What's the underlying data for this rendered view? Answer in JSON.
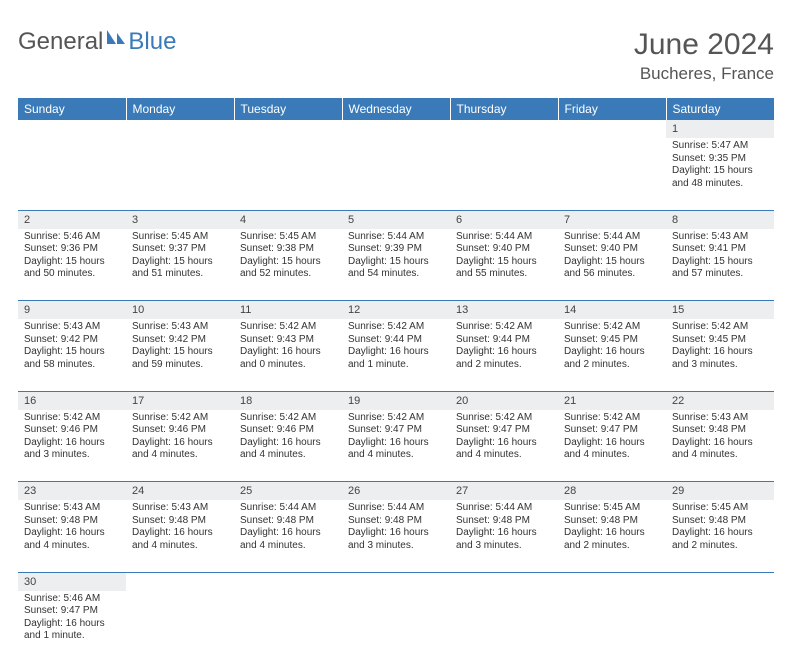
{
  "logo": {
    "text1": "General",
    "text2": "Blue"
  },
  "header": {
    "month": "June 2024",
    "location": "Bucheres, France"
  },
  "colors": {
    "brand": "#3a7ab8",
    "grayband": "#eceeef",
    "text": "#333333",
    "heading": "#555555"
  },
  "weekdays": [
    "Sunday",
    "Monday",
    "Tuesday",
    "Wednesday",
    "Thursday",
    "Friday",
    "Saturday"
  ],
  "weeks": [
    [
      null,
      null,
      null,
      null,
      null,
      null,
      {
        "d": "1",
        "sr": "Sunrise: 5:47 AM",
        "ss": "Sunset: 9:35 PM",
        "dl": "Daylight: 15 hours and 48 minutes."
      }
    ],
    [
      {
        "d": "2",
        "sr": "Sunrise: 5:46 AM",
        "ss": "Sunset: 9:36 PM",
        "dl": "Daylight: 15 hours and 50 minutes."
      },
      {
        "d": "3",
        "sr": "Sunrise: 5:45 AM",
        "ss": "Sunset: 9:37 PM",
        "dl": "Daylight: 15 hours and 51 minutes."
      },
      {
        "d": "4",
        "sr": "Sunrise: 5:45 AM",
        "ss": "Sunset: 9:38 PM",
        "dl": "Daylight: 15 hours and 52 minutes."
      },
      {
        "d": "5",
        "sr": "Sunrise: 5:44 AM",
        "ss": "Sunset: 9:39 PM",
        "dl": "Daylight: 15 hours and 54 minutes."
      },
      {
        "d": "6",
        "sr": "Sunrise: 5:44 AM",
        "ss": "Sunset: 9:40 PM",
        "dl": "Daylight: 15 hours and 55 minutes."
      },
      {
        "d": "7",
        "sr": "Sunrise: 5:44 AM",
        "ss": "Sunset: 9:40 PM",
        "dl": "Daylight: 15 hours and 56 minutes."
      },
      {
        "d": "8",
        "sr": "Sunrise: 5:43 AM",
        "ss": "Sunset: 9:41 PM",
        "dl": "Daylight: 15 hours and 57 minutes."
      }
    ],
    [
      {
        "d": "9",
        "sr": "Sunrise: 5:43 AM",
        "ss": "Sunset: 9:42 PM",
        "dl": "Daylight: 15 hours and 58 minutes."
      },
      {
        "d": "10",
        "sr": "Sunrise: 5:43 AM",
        "ss": "Sunset: 9:42 PM",
        "dl": "Daylight: 15 hours and 59 minutes."
      },
      {
        "d": "11",
        "sr": "Sunrise: 5:42 AM",
        "ss": "Sunset: 9:43 PM",
        "dl": "Daylight: 16 hours and 0 minutes."
      },
      {
        "d": "12",
        "sr": "Sunrise: 5:42 AM",
        "ss": "Sunset: 9:44 PM",
        "dl": "Daylight: 16 hours and 1 minute."
      },
      {
        "d": "13",
        "sr": "Sunrise: 5:42 AM",
        "ss": "Sunset: 9:44 PM",
        "dl": "Daylight: 16 hours and 2 minutes."
      },
      {
        "d": "14",
        "sr": "Sunrise: 5:42 AM",
        "ss": "Sunset: 9:45 PM",
        "dl": "Daylight: 16 hours and 2 minutes."
      },
      {
        "d": "15",
        "sr": "Sunrise: 5:42 AM",
        "ss": "Sunset: 9:45 PM",
        "dl": "Daylight: 16 hours and 3 minutes."
      }
    ],
    [
      {
        "d": "16",
        "sr": "Sunrise: 5:42 AM",
        "ss": "Sunset: 9:46 PM",
        "dl": "Daylight: 16 hours and 3 minutes."
      },
      {
        "d": "17",
        "sr": "Sunrise: 5:42 AM",
        "ss": "Sunset: 9:46 PM",
        "dl": "Daylight: 16 hours and 4 minutes."
      },
      {
        "d": "18",
        "sr": "Sunrise: 5:42 AM",
        "ss": "Sunset: 9:46 PM",
        "dl": "Daylight: 16 hours and 4 minutes."
      },
      {
        "d": "19",
        "sr": "Sunrise: 5:42 AM",
        "ss": "Sunset: 9:47 PM",
        "dl": "Daylight: 16 hours and 4 minutes."
      },
      {
        "d": "20",
        "sr": "Sunrise: 5:42 AM",
        "ss": "Sunset: 9:47 PM",
        "dl": "Daylight: 16 hours and 4 minutes."
      },
      {
        "d": "21",
        "sr": "Sunrise: 5:42 AM",
        "ss": "Sunset: 9:47 PM",
        "dl": "Daylight: 16 hours and 4 minutes."
      },
      {
        "d": "22",
        "sr": "Sunrise: 5:43 AM",
        "ss": "Sunset: 9:48 PM",
        "dl": "Daylight: 16 hours and 4 minutes."
      }
    ],
    [
      {
        "d": "23",
        "sr": "Sunrise: 5:43 AM",
        "ss": "Sunset: 9:48 PM",
        "dl": "Daylight: 16 hours and 4 minutes."
      },
      {
        "d": "24",
        "sr": "Sunrise: 5:43 AM",
        "ss": "Sunset: 9:48 PM",
        "dl": "Daylight: 16 hours and 4 minutes."
      },
      {
        "d": "25",
        "sr": "Sunrise: 5:44 AM",
        "ss": "Sunset: 9:48 PM",
        "dl": "Daylight: 16 hours and 4 minutes."
      },
      {
        "d": "26",
        "sr": "Sunrise: 5:44 AM",
        "ss": "Sunset: 9:48 PM",
        "dl": "Daylight: 16 hours and 3 minutes."
      },
      {
        "d": "27",
        "sr": "Sunrise: 5:44 AM",
        "ss": "Sunset: 9:48 PM",
        "dl": "Daylight: 16 hours and 3 minutes."
      },
      {
        "d": "28",
        "sr": "Sunrise: 5:45 AM",
        "ss": "Sunset: 9:48 PM",
        "dl": "Daylight: 16 hours and 2 minutes."
      },
      {
        "d": "29",
        "sr": "Sunrise: 5:45 AM",
        "ss": "Sunset: 9:48 PM",
        "dl": "Daylight: 16 hours and 2 minutes."
      }
    ],
    [
      {
        "d": "30",
        "sr": "Sunrise: 5:46 AM",
        "ss": "Sunset: 9:47 PM",
        "dl": "Daylight: 16 hours and 1 minute."
      },
      null,
      null,
      null,
      null,
      null,
      null
    ]
  ]
}
